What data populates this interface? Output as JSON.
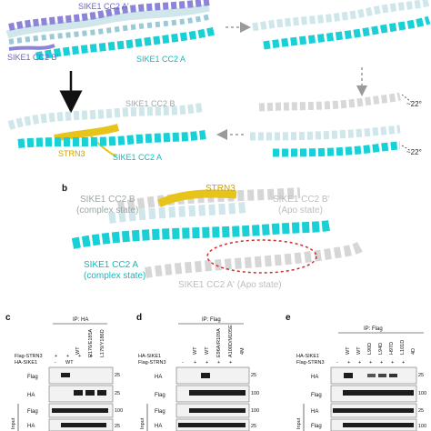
{
  "colors": {
    "cyan": "#19d0d6",
    "pale": "#cfe6ea",
    "lavender": "#8b84d8",
    "gold": "#e8c41a",
    "grey": "#9a9a9a",
    "red": "#d62a2a",
    "blot_band": "#1c1c1c"
  },
  "panel_a": {
    "label_cc2_a_prime": "SIKE1 CC2 A'",
    "label_cc2_b_prime": "SIKE1 CC2 B'",
    "label_cc2_a": "SIKE1 CC2 A",
    "label_cc2_b": "SIKE1 CC2 B",
    "label_strn3": "STRN3",
    "label_cc2_a_bottom": "SIKE1 CC2 A",
    "angle_top": "~22°",
    "angle_bottom": "~22°"
  },
  "panel_b": {
    "letter": "b",
    "strn3": "STRN3",
    "cc2_b": "SIKE1 CC2 B",
    "cc2_b_state": "(complex state)",
    "cc2_b_prime": "SIKE1 CC2 B'",
    "cc2_b_prime_state": "(Apo state)",
    "cc2_a": "SIKE1 CC2 A",
    "cc2_a_state": "(complex state)",
    "cc2_a_prime": "SIKE1 CC2 A' (Apo state)"
  },
  "panel_c": {
    "letter": "c",
    "ip": "IP: HA",
    "row1_name": "Flag-STRN3",
    "row2_name": "HA-SIKE1",
    "columns": [
      "WT",
      "R176/E185A",
      "L179/Y186D"
    ],
    "row1_signs": [
      "+",
      "+",
      "+",
      "+"
    ],
    "row2_signs": [
      "-",
      "WT",
      "",
      ""
    ],
    "blots": [
      "Flag",
      "HA",
      "Flag",
      "HA"
    ],
    "input": "Input",
    "mw": [
      "25",
      "25",
      "100",
      "25"
    ]
  },
  "panel_d": {
    "letter": "d",
    "ip": "IP: Flag",
    "row1_name": "HA-SIKE1",
    "row2_name": "Flag-STRN3",
    "columns": [
      "WT",
      "WT",
      "E96A/R109A",
      "A100D/M105E",
      "4M"
    ],
    "row2_signs": [
      "-",
      "+",
      "+",
      "+",
      "+"
    ],
    "blots": [
      "HA",
      "Flag",
      "Flag",
      "HA"
    ],
    "input": "Input",
    "mw": [
      "25",
      "100",
      "100",
      "25"
    ]
  },
  "panel_e": {
    "letter": "e",
    "ip": "IP: Flag",
    "row1_name": "HA-SIKE1",
    "row2_name": "Flag-STRN3",
    "columns": [
      "WT",
      "WT",
      "L90D",
      "L94D",
      "H97D",
      "L101D",
      "4D"
    ],
    "row2_signs": [
      "-",
      "+",
      "+",
      "+",
      "+",
      "+",
      "+"
    ],
    "blots": [
      "HA",
      "Flag",
      "HA",
      "Flag"
    ],
    "input": "Input",
    "mw": [
      "25",
      "100",
      "25",
      "100"
    ]
  }
}
